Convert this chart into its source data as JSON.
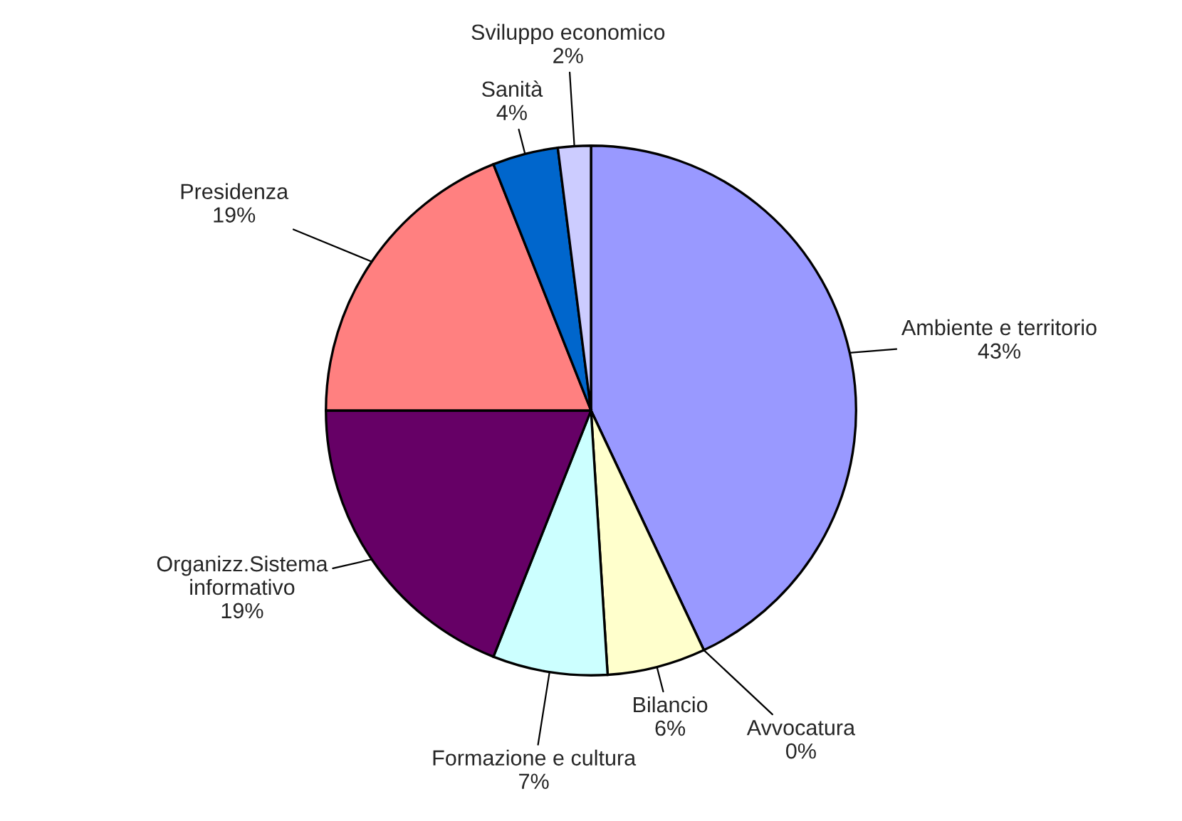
{
  "chart_data": {
    "type": "pie",
    "categories": [
      "Ambiente e territorio",
      "Avvocatura",
      "Bilancio",
      "Formazione e cultura",
      "Organizz.Sistema\ninformativo",
      "Presidenza",
      "Sanità",
      "Sviluppo economico"
    ],
    "values": [
      43,
      0,
      6,
      7,
      19,
      19,
      4,
      2
    ],
    "value_labels": [
      "43%",
      "0%",
      "6%",
      "7%",
      "19%",
      "19%",
      "4%",
      "2%"
    ],
    "colors": [
      "#9999ff",
      "#993366",
      "#ffffcc",
      "#ccffff",
      "#660066",
      "#ff8080",
      "#0066cc",
      "#ccccff"
    ],
    "legend": false
  }
}
